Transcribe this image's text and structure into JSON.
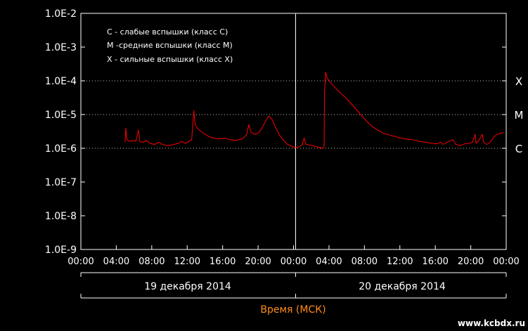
{
  "chart_data": {
    "type": "line",
    "scale": "log",
    "ylim": [
      1e-09,
      0.01
    ],
    "y_tick_labels": [
      "1.0E-2",
      "1.0E-3",
      "1.0E-4",
      "1.0E-5",
      "1.0E-6",
      "1.0E-7",
      "1.0E-8",
      "1.0E-9"
    ],
    "x_range_hours": [
      0,
      48
    ],
    "x_tick_labels": [
      "00:00",
      "04:00",
      "08:00",
      "12:00",
      "16:00",
      "20:00",
      "00:00",
      "04:00",
      "08:00",
      "12:00",
      "16:00",
      "20:00",
      "00:00"
    ],
    "dates": [
      "19 декабря 2014",
      "20 декабря 2014"
    ],
    "xlabel": "Время (МСК)",
    "legend": [
      "C - слабые вспышки (класс C)",
      "M -средние вспышки (класс M)",
      "X - сильные вспышки (класс X)"
    ],
    "class_markers": [
      {
        "label": "X",
        "value": 0.0001
      },
      {
        "label": "M",
        "value": 1e-05
      },
      {
        "label": "C",
        "value": 1e-06
      }
    ],
    "series_color": "#ff0000",
    "grid": "dotted at C/M/X levels",
    "series": [
      {
        "points": [
          [
            5.0,
            1.5e-06
          ],
          [
            5.08,
            4e-06
          ],
          [
            5.2,
            1.8e-06
          ],
          [
            5.5,
            1.6e-06
          ],
          [
            5.9,
            1.7e-06
          ],
          [
            6.2,
            1.6e-06
          ],
          [
            6.5,
            3.5e-06
          ],
          [
            6.65,
            1.6e-06
          ],
          [
            7.0,
            1.5e-06
          ],
          [
            7.4,
            1.7e-06
          ],
          [
            7.8,
            1.4e-06
          ],
          [
            8.3,
            1.3e-06
          ],
          [
            8.8,
            1.5e-06
          ],
          [
            9.2,
            1.3e-06
          ],
          [
            9.8,
            1.2e-06
          ],
          [
            10.5,
            1.3e-06
          ],
          [
            11.0,
            1.4e-06
          ],
          [
            11.4,
            1.6e-06
          ],
          [
            11.8,
            1.4e-06
          ],
          [
            12.2,
            1.6e-06
          ],
          [
            12.5,
            1.8e-06
          ],
          [
            12.75,
            1.3e-05
          ],
          [
            12.9,
            5e-06
          ],
          [
            13.2,
            3.8e-06
          ],
          [
            13.6,
            3.1e-06
          ],
          [
            14.0,
            2.6e-06
          ],
          [
            14.5,
            2.2e-06
          ],
          [
            15.0,
            2e-06
          ],
          [
            15.6,
            1.9e-06
          ],
          [
            16.2,
            2e-06
          ],
          [
            16.8,
            1.8e-06
          ],
          [
            17.5,
            1.7e-06
          ],
          [
            18.2,
            1.9e-06
          ],
          [
            18.7,
            2.5e-06
          ],
          [
            18.95,
            5e-06
          ],
          [
            19.2,
            3e-06
          ],
          [
            19.6,
            2.6e-06
          ],
          [
            20.0,
            2.8e-06
          ],
          [
            20.4,
            3.8e-06
          ],
          [
            20.8,
            6e-06
          ],
          [
            21.2,
            9e-06
          ],
          [
            21.6,
            7e-06
          ],
          [
            22.0,
            4e-06
          ],
          [
            22.4,
            2.5e-06
          ],
          [
            22.8,
            1.8e-06
          ],
          [
            23.3,
            1.3e-06
          ],
          [
            23.8,
            1.15e-06
          ],
          [
            24.2,
            1.05e-06
          ],
          [
            24.6,
            1.1e-06
          ],
          [
            25.0,
            1.3e-06
          ],
          [
            25.2,
            2e-06
          ],
          [
            25.4,
            1.3e-06
          ],
          [
            25.8,
            1.25e-06
          ],
          [
            26.2,
            1.2e-06
          ],
          [
            26.6,
            1.1e-06
          ],
          [
            27.0,
            1.05e-06
          ],
          [
            27.3,
            1e-06
          ],
          [
            27.45,
            1.1e-06
          ],
          [
            27.5,
            4.5e-05
          ],
          [
            27.62,
            0.00018
          ],
          [
            27.8,
            0.00012
          ],
          [
            28.3,
            8e-05
          ],
          [
            29.0,
            5.2e-05
          ],
          [
            29.8,
            3.3e-05
          ],
          [
            30.5,
            2.1e-05
          ],
          [
            31.2,
            1.3e-05
          ],
          [
            31.8,
            8.5e-06
          ],
          [
            32.4,
            5.8e-06
          ],
          [
            33.0,
            4.2e-06
          ],
          [
            33.6,
            3.3e-06
          ],
          [
            34.3,
            2.7e-06
          ],
          [
            35.0,
            2.4e-06
          ],
          [
            35.8,
            2.1e-06
          ],
          [
            36.6,
            1.9e-06
          ],
          [
            37.4,
            1.8e-06
          ],
          [
            38.2,
            1.6e-06
          ],
          [
            39.0,
            1.5e-06
          ],
          [
            39.6,
            1.4e-06
          ],
          [
            40.2,
            1.35e-06
          ],
          [
            40.6,
            1.5e-06
          ],
          [
            40.9,
            1.3e-06
          ],
          [
            41.5,
            1.6e-06
          ],
          [
            42.0,
            1.8e-06
          ],
          [
            42.3,
            1.3e-06
          ],
          [
            42.8,
            1.2e-06
          ],
          [
            43.3,
            1.35e-06
          ],
          [
            43.8,
            1.4e-06
          ],
          [
            44.2,
            1.5e-06
          ],
          [
            44.5,
            2.6e-06
          ],
          [
            44.6,
            1.4e-06
          ],
          [
            44.9,
            1.7e-06
          ],
          [
            45.3,
            2.6e-06
          ],
          [
            45.45,
            1.5e-06
          ],
          [
            45.8,
            1.3e-06
          ],
          [
            46.2,
            1.5e-06
          ],
          [
            46.6,
            2.2e-06
          ],
          [
            47.0,
            2.6e-06
          ],
          [
            47.4,
            2.8e-06
          ],
          [
            47.7,
            2.9e-06
          ]
        ]
      }
    ]
  },
  "watermark": "www.kcbdx.ru"
}
